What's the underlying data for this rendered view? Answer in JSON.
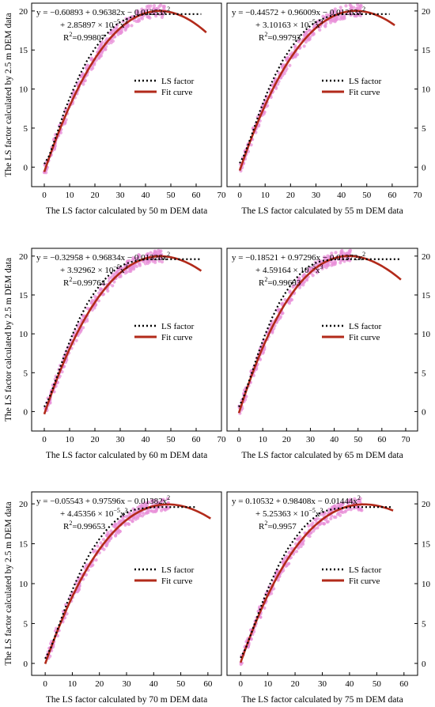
{
  "colors": {
    "fit": "#b22a1a",
    "scatter": "#e88fd8",
    "ls": "#000000"
  },
  "ylabel": "The LS factor calculated by 2.5 m DEM data",
  "legend": {
    "ls_label": "LS factor",
    "fit_label": "Fit curve"
  },
  "chart_data": [
    {
      "type": "line",
      "xlabel": "The LS factor calculated by 50 m DEM data",
      "xlim": [
        -5,
        70
      ],
      "ylim": [
        -2.5,
        21
      ],
      "xticks": [
        0,
        10,
        20,
        30,
        40,
        50,
        60,
        70
      ],
      "yticks": [
        0,
        5,
        10,
        15,
        20
      ],
      "coef": [
        -0.60893,
        0.96382,
        -0.01253,
        2.85897e-05
      ],
      "fit_xmax": 64,
      "scatter_xmax": 49,
      "ls_points": {
        "x": [
          0,
          2,
          5,
          8,
          11,
          14,
          17,
          20,
          23,
          26,
          29,
          32,
          35,
          38,
          41,
          44,
          47,
          50,
          53,
          56,
          59,
          62
        ],
        "y": [
          0.4,
          1.5,
          4.3,
          7.2,
          9.6,
          11.8,
          13.7,
          15.2,
          16.5,
          17.5,
          18.4,
          18.9,
          19.3,
          19.5,
          19.6,
          19.6,
          19.6,
          19.6,
          19.6,
          19.6,
          19.6,
          19.6
        ]
      },
      "equation": {
        "line1": "y = −0.60893 + 0.96382x − 0.01253x",
        "line1_sup": "2",
        "line2": "+ 2.85897 × 10",
        "line2_exp": "−5",
        "line2_tail": "x",
        "line2_sup": "3",
        "r2_label": "R",
        "r2_sup": "2",
        "r2_value": "=0.99807"
      }
    },
    {
      "type": "line",
      "xlabel": "The LS factor calculated by 55 m DEM data",
      "xlim": [
        -5,
        70
      ],
      "ylim": [
        -2.5,
        21
      ],
      "xticks": [
        0,
        10,
        20,
        30,
        40,
        50,
        60,
        70
      ],
      "yticks": [
        0,
        5,
        10,
        15,
        20
      ],
      "coef": [
        -0.44572,
        0.96009,
        -0.01263,
        3.10163e-05
      ],
      "fit_xmax": 61,
      "scatter_xmax": 48,
      "ls_points": {
        "x": [
          0,
          2,
          5,
          8,
          11,
          14,
          17,
          20,
          23,
          26,
          29,
          32,
          35,
          38,
          41,
          44,
          47,
          50,
          53,
          56,
          59
        ],
        "y": [
          0.5,
          1.7,
          4.4,
          7.2,
          9.7,
          11.8,
          13.7,
          15.2,
          16.5,
          17.6,
          18.4,
          18.9,
          19.3,
          19.5,
          19.6,
          19.6,
          19.6,
          19.6,
          19.6,
          19.6,
          19.6
        ]
      },
      "equation": {
        "line1": "y = −0.44572 + 0.96009x − 0.01263x",
        "line1_sup": "2",
        "line2": "+ 3.10163 × 10",
        "line2_exp": "−5",
        "line2_tail": "x",
        "line2_sup": "3",
        "r2_label": "R",
        "r2_sup": "2",
        "r2_value": "=0.99793"
      }
    },
    {
      "type": "line",
      "xlabel": "The LS factor calculated by 60 m DEM data",
      "xlim": [
        -5,
        70
      ],
      "ylim": [
        -2.5,
        21
      ],
      "xticks": [
        0,
        10,
        20,
        30,
        40,
        50,
        60,
        70
      ],
      "yticks": [
        0,
        5,
        10,
        15,
        20
      ],
      "coef": [
        -0.32958,
        0.96834,
        -0.01326,
        3.92962e-05
      ],
      "fit_xmax": 62,
      "scatter_xmax": 47,
      "ls_points": {
        "x": [
          0,
          2,
          5,
          8,
          11,
          14,
          17,
          20,
          23,
          26,
          29,
          32,
          35,
          38,
          41,
          44,
          47,
          50,
          53,
          56,
          59,
          62
        ],
        "y": [
          0.6,
          1.8,
          4.5,
          7.3,
          9.8,
          12.0,
          13.9,
          15.4,
          16.7,
          17.7,
          18.5,
          19.0,
          19.3,
          19.5,
          19.6,
          19.6,
          19.6,
          19.6,
          19.6,
          19.6,
          19.6,
          19.6
        ]
      },
      "equation": {
        "line1": "y = −0.32958 + 0.96834x − 0.01326x",
        "line1_sup": "2",
        "line2": "+ 3.92962 × 10",
        "line2_exp": "−5",
        "line2_tail": "x",
        "line2_sup": "3",
        "r2_label": "R",
        "r2_sup": "2",
        "r2_value": "=0.99764"
      }
    },
    {
      "type": "line",
      "xlabel": "The LS factor calculated by 65 m DEM data",
      "xlim": [
        -5,
        75
      ],
      "ylim": [
        -2.5,
        21
      ],
      "xticks": [
        0,
        10,
        20,
        30,
        40,
        50,
        60,
        70
      ],
      "yticks": [
        0,
        5,
        10,
        15,
        20
      ],
      "coef": [
        -0.18521,
        0.97296,
        -0.01372,
        4.59164e-05
      ],
      "fit_xmax": 68,
      "scatter_xmax": 47,
      "ls_points": {
        "x": [
          0,
          2,
          5,
          8,
          11,
          14,
          17,
          20,
          23,
          26,
          29,
          32,
          35,
          38,
          41,
          44,
          47,
          50,
          53,
          56,
          59,
          62,
          65,
          68
        ],
        "y": [
          0.6,
          1.9,
          4.6,
          7.4,
          9.9,
          12.1,
          14.0,
          15.5,
          16.8,
          17.8,
          18.6,
          19.1,
          19.4,
          19.5,
          19.6,
          19.6,
          19.6,
          19.6,
          19.6,
          19.6,
          19.6,
          19.6,
          19.6,
          19.6
        ]
      },
      "equation": {
        "line1": "y = −0.18521 + 0.97296x − 0.01372x",
        "line1_sup": "2",
        "line2": "+ 4.59164 × 10",
        "line2_exp": "−5",
        "line2_tail": "x",
        "line2_sup": "3",
        "r2_label": "R",
        "r2_sup": "2",
        "r2_value": "=0.99693"
      }
    },
    {
      "type": "line",
      "xlabel": "The LS factor calculated by 70 m DEM data",
      "xlim": [
        -5,
        65
      ],
      "ylim": [
        -1.5,
        21.5
      ],
      "xticks": [
        0,
        10,
        20,
        30,
        40,
        50,
        60
      ],
      "yticks": [
        0,
        5,
        10,
        15,
        20
      ],
      "coef": [
        -0.05543,
        0.97596,
        -0.01382,
        4.45356e-05
      ],
      "fit_xmax": 61,
      "scatter_xmax": 46,
      "ls_points": {
        "x": [
          0,
          2,
          5,
          8,
          11,
          14,
          17,
          20,
          23,
          26,
          29,
          32,
          35,
          38,
          41,
          44,
          47,
          50,
          53,
          56
        ],
        "y": [
          0.6,
          1.9,
          4.7,
          7.5,
          10.0,
          12.2,
          14.1,
          15.6,
          16.9,
          17.9,
          18.7,
          19.2,
          19.4,
          19.5,
          19.6,
          19.6,
          19.6,
          19.6,
          19.6,
          19.6
        ]
      },
      "equation": {
        "line1": "y = −0.05543 + 0.97596x − 0.01382x",
        "line1_sup": "2",
        "line2": "+ 4.45356 × 10",
        "line2_exp": "−5",
        "line2_tail": "x",
        "line2_sup": "3",
        "r2_label": "R",
        "r2_sup": "2",
        "r2_value": "=0.99653"
      }
    },
    {
      "type": "line",
      "xlabel": "The LS factor calculated by 75 m DEM data",
      "xlim": [
        -5,
        65
      ],
      "ylim": [
        -1.5,
        21.5
      ],
      "xticks": [
        0,
        10,
        20,
        30,
        40,
        50,
        60
      ],
      "yticks": [
        0,
        5,
        10,
        15,
        20
      ],
      "coef": [
        0.10532,
        0.98408,
        -0.01444,
        5.25363e-05
      ],
      "fit_xmax": 56,
      "scatter_xmax": 45,
      "ls_points": {
        "x": [
          0,
          2,
          5,
          8,
          11,
          14,
          17,
          20,
          23,
          26,
          29,
          32,
          35,
          38,
          41,
          44,
          47,
          50,
          53,
          56
        ],
        "y": [
          0.7,
          2.0,
          4.8,
          7.6,
          10.1,
          12.3,
          14.2,
          15.7,
          17.0,
          18.0,
          18.8,
          19.2,
          19.4,
          19.5,
          19.6,
          19.6,
          19.6,
          19.6,
          19.6,
          19.6
        ]
      },
      "equation": {
        "line1": "y = 0.10532 + 0.98408x − 0.01444x",
        "line1_sup": "2",
        "line2": "+ 5.25363 × 10",
        "line2_exp": "−5",
        "line2_tail": "x",
        "line2_sup": "3",
        "r2_label": "R",
        "r2_sup": "2",
        "r2_value": "=0.9957"
      }
    }
  ]
}
